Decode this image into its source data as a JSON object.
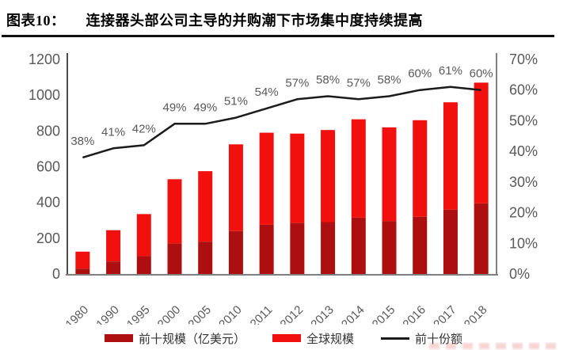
{
  "figure": {
    "label": "图表10：",
    "title": "连接器头部公司主导的并购潮下市场集中度持续提高"
  },
  "colors": {
    "bar_top10": "#ad0e10",
    "bar_global": "#f2100e",
    "share_line": "#1b1b1b",
    "axis_line": "#7f7f7f",
    "left_axis_line": "#4d4d4d",
    "tick_text": "#595959",
    "point_label_text": "#595959"
  },
  "chart_data": {
    "type": "bar",
    "subtype": "stacked bars with secondary-axis line",
    "categories": [
      "1980",
      "1990",
      "1995",
      "2000",
      "2005",
      "2010",
      "2011",
      "2012",
      "2013",
      "2014",
      "2015",
      "2016",
      "2017",
      "2018"
    ],
    "series": [
      {
        "name": "前十规模（亿美元）",
        "type": "bar",
        "axis": "left",
        "color": "#ad0e10",
        "values": [
          30,
          70,
          100,
          170,
          180,
          240,
          275,
          285,
          290,
          315,
          295,
          320,
          360,
          395
        ]
      },
      {
        "name": "全球规模",
        "type": "bar",
        "axis": "left",
        "color": "#f2100e",
        "values": [
          125,
          245,
          335,
          530,
          575,
          725,
          790,
          785,
          805,
          865,
          820,
          860,
          960,
          1070
        ]
      },
      {
        "name": "前十份额",
        "type": "line",
        "axis": "right",
        "color": "#1b1b1b",
        "values": [
          38,
          41,
          42,
          49,
          49,
          51,
          54,
          57,
          58,
          57,
          58,
          60,
          61,
          60
        ],
        "labels": [
          "38%",
          "41%",
          "42%",
          "49%",
          "49%",
          "51%",
          "54%",
          "57%",
          "58%",
          "57%",
          "58%",
          "60%",
          "61%",
          "60%"
        ]
      }
    ],
    "left_axis": {
      "min": 0,
      "max": 1200,
      "step": 200,
      "ticks": [
        "0",
        "200",
        "400",
        "600",
        "800",
        "1000",
        "1200"
      ]
    },
    "right_axis": {
      "min": 0,
      "max": 70,
      "step": 10,
      "ticks": [
        "0%",
        "10%",
        "20%",
        "30%",
        "40%",
        "50%",
        "60%",
        "70%"
      ]
    },
    "grid": false,
    "legend_position": "bottom",
    "bar_meaning": "dark segment = 前十规模, full column height = 全球规模, line = 前十份额 (right axis)"
  }
}
